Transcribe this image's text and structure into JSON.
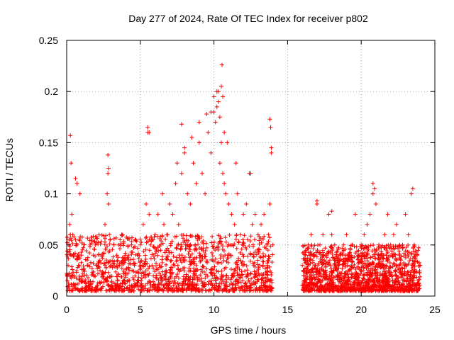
{
  "chart_data": {
    "type": "scatter",
    "title": "Day 277 of 2024, Rate Of TEC Index for receiver p802",
    "xlabel": "GPS time / hours",
    "ylabel": "ROTI / TECUs",
    "xlim": [
      0,
      25
    ],
    "ylim": [
      0,
      0.25
    ],
    "x_ticks": [
      0,
      5,
      10,
      15,
      20,
      25
    ],
    "x_tick_labels": [
      "0",
      "5",
      "10",
      "15",
      "20",
      "25"
    ],
    "y_ticks": [
      0,
      0.05,
      0.1,
      0.15,
      0.2,
      0.25
    ],
    "y_tick_labels": [
      "0",
      "0.05",
      "0.1",
      "0.15",
      "0.2",
      "0.25"
    ],
    "grid": true,
    "marker": "+",
    "series": [
      {
        "name": "ROTI",
        "color": "#ff0000",
        "x": [
          0.1,
          0.15,
          0.2,
          0.25,
          0.3,
          0.35,
          0.5,
          0.7,
          0.8,
          0.9,
          1.0,
          1.2,
          1.4,
          1.6,
          1.8,
          2.0,
          2.2,
          2.4,
          2.6,
          2.75,
          2.8,
          2.85,
          2.9,
          3.0,
          3.2,
          3.4,
          3.6,
          3.8,
          4.0,
          4.2,
          4.4,
          4.6,
          4.8,
          5.0,
          5.2,
          5.4,
          5.5,
          5.6,
          5.7,
          5.8,
          6.0,
          6.2,
          6.4,
          6.5,
          6.6,
          6.8,
          7.0,
          7.2,
          7.4,
          7.6,
          7.8,
          8.0,
          8.2,
          8.4,
          8.6,
          8.8,
          9.0,
          9.2,
          9.4,
          9.6,
          9.8,
          10.0,
          10.1,
          10.2,
          10.3,
          10.4,
          10.5,
          10.6,
          10.7,
          10.8,
          11.0,
          11.2,
          11.4,
          11.6,
          11.8,
          12.0,
          12.2,
          12.4,
          12.6,
          12.8,
          13.0,
          13.2,
          13.4,
          13.6,
          13.7,
          13.8,
          13.9,
          14.0,
          16.0,
          16.2,
          16.4,
          16.6,
          16.8,
          17.0,
          17.2,
          17.4,
          17.6,
          17.8,
          18.0,
          18.2,
          18.4,
          18.6,
          18.8,
          19.0,
          19.2,
          19.4,
          19.6,
          19.8,
          20.0,
          20.2,
          20.4,
          20.6,
          20.8,
          21.0,
          21.2,
          21.4,
          21.6,
          21.8,
          22.0,
          22.2,
          22.4,
          22.6,
          22.8,
          23.0,
          23.2,
          23.4,
          23.6,
          23.8,
          24.0,
          0.25,
          0.3,
          0.6,
          0.7,
          2.8,
          2.85,
          5.5,
          5.6,
          7.5,
          7.8,
          8.0,
          8.5,
          9.0,
          9.5,
          9.8,
          10.0,
          10.2,
          10.3,
          10.4,
          10.5,
          10.55,
          10.6,
          10.7,
          10.9,
          11.5,
          12.5,
          13.8,
          13.85,
          13.9,
          17.0,
          18.0,
          20.8,
          20.9,
          23.5
        ],
        "y": [
          0.03,
          0.05,
          0.07,
          0.06,
          0.04,
          0.08,
          0.02,
          0.05,
          0.03,
          0.1,
          0.04,
          0.02,
          0.03,
          0.05,
          0.04,
          0.03,
          0.06,
          0.04,
          0.07,
          0.1,
          0.12,
          0.09,
          0.06,
          0.03,
          0.05,
          0.04,
          0.03,
          0.06,
          0.02,
          0.04,
          0.05,
          0.03,
          0.04,
          0.05,
          0.07,
          0.09,
          0.16,
          0.08,
          0.05,
          0.03,
          0.06,
          0.08,
          0.05,
          0.1,
          0.07,
          0.06,
          0.09,
          0.08,
          0.11,
          0.07,
          0.12,
          0.14,
          0.1,
          0.09,
          0.13,
          0.11,
          0.15,
          0.12,
          0.1,
          0.16,
          0.14,
          0.18,
          0.17,
          0.2,
          0.19,
          0.13,
          0.15,
          0.12,
          0.11,
          0.1,
          0.09,
          0.08,
          0.07,
          0.1,
          0.06,
          0.08,
          0.09,
          0.12,
          0.07,
          0.08,
          0.06,
          0.07,
          0.08,
          0.05,
          0.06,
          0.09,
          0.14,
          0.05,
          0.03,
          0.04,
          0.05,
          0.06,
          0.04,
          0.09,
          0.05,
          0.06,
          0.04,
          0.08,
          0.06,
          0.05,
          0.03,
          0.04,
          0.05,
          0.06,
          0.04,
          0.05,
          0.08,
          0.04,
          0.05,
          0.06,
          0.07,
          0.08,
          0.1,
          0.09,
          0.05,
          0.04,
          0.06,
          0.08,
          0.05,
          0.06,
          0.07,
          0.04,
          0.05,
          0.08,
          0.06,
          0.1,
          0.05,
          0.04,
          0.03,
          0.157,
          0.13,
          0.115,
          0.11,
          0.138,
          0.125,
          0.165,
          0.16,
          0.13,
          0.168,
          0.145,
          0.155,
          0.17,
          0.178,
          0.18,
          0.195,
          0.185,
          0.2,
          0.175,
          0.205,
          0.226,
          0.195,
          0.16,
          0.15,
          0.13,
          0.12,
          0.173,
          0.165,
          0.145,
          0.093,
          0.083,
          0.11,
          0.105,
          0.105
        ]
      }
    ],
    "dense_band": {
      "description_values": [
        {
          "x_range": [
            0,
            14
          ],
          "y_range": [
            0.005,
            0.06
          ]
        },
        {
          "x_range": [
            16,
            24
          ],
          "y_range": [
            0.005,
            0.05
          ]
        }
      ]
    }
  }
}
